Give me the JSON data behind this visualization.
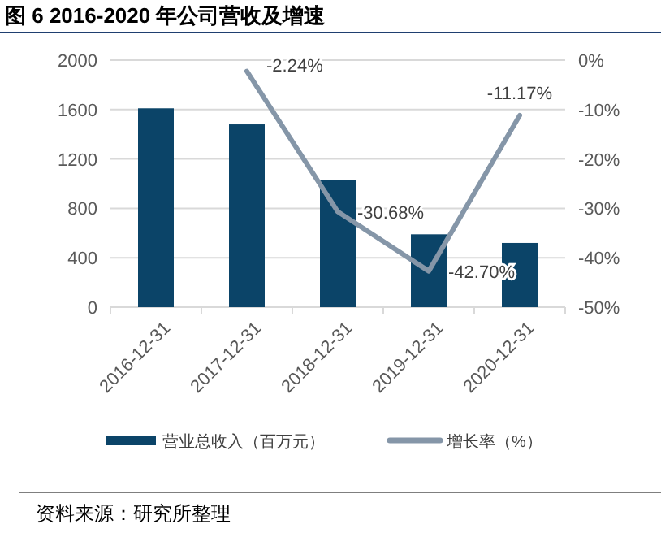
{
  "chart_data": {
    "type": "bar",
    "title": "图 6 2016-2020 年公司营收及增速",
    "categories": [
      "2016-12-31",
      "2017-12-31",
      "2018-12-31",
      "2019-12-31",
      "2020-12-31"
    ],
    "series": [
      {
        "name": "营业总收入（百万元）",
        "color": "#0b4468",
        "values": [
          1610,
          1480,
          1030,
          590,
          520
        ]
      },
      {
        "name": "增长率（%）",
        "type": "line",
        "axis": "y2",
        "color": "#8596a8",
        "values": [
          null,
          -2.24,
          -30.68,
          -42.7,
          -11.17
        ],
        "value_labels": [
          null,
          "-2.24%",
          "-30.68%",
          "-42.70%",
          "-11.17%"
        ]
      }
    ],
    "ylim": [
      0,
      2000
    ],
    "yticks": [
      0,
      400,
      800,
      1200,
      1600,
      2000
    ],
    "y2lim": [
      -50,
      0
    ],
    "y2ticks": [
      {
        "value": -50,
        "label": "-50%"
      },
      {
        "value": -40,
        "label": "-40%"
      },
      {
        "value": -30,
        "label": "-30%"
      },
      {
        "value": -20,
        "label": "-20%"
      },
      {
        "value": -10,
        "label": "-10%"
      },
      {
        "value": 0,
        "label": "0%"
      }
    ],
    "grid": "y",
    "legend": "bottom",
    "annotations": [
      "资料来源：研究所整理"
    ]
  }
}
